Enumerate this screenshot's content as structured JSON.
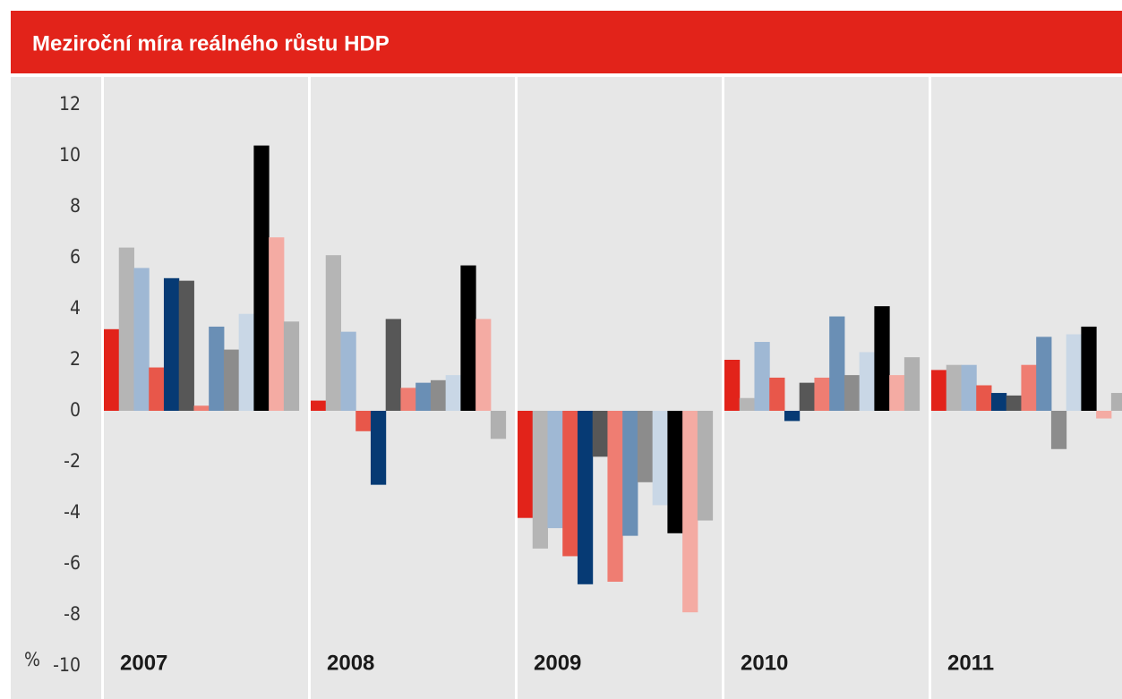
{
  "chart_data": {
    "type": "bar",
    "title": "Meziroční míra reálného růstu HDP",
    "y_label": "%",
    "categories": [
      "2007",
      "2008",
      "2009",
      "2010",
      "2011"
    ],
    "ylim": [
      -10,
      12
    ],
    "yticks": [
      -10,
      -8,
      -6,
      -4,
      -2,
      0,
      2,
      4,
      6,
      8,
      10,
      12
    ],
    "series": [
      {
        "color": "#e2231a",
        "values": [
          3.2,
          0.4,
          -4.2,
          2.0,
          1.6
        ]
      },
      {
        "color": "#b5b5b5",
        "values": [
          6.4,
          6.1,
          -5.4,
          0.5,
          1.8
        ]
      },
      {
        "color": "#9fb8d4",
        "values": [
          5.6,
          3.1,
          -4.6,
          2.7,
          1.8
        ]
      },
      {
        "color": "#e8574a",
        "values": [
          1.7,
          -0.8,
          -5.7,
          1.3,
          1.0
        ]
      },
      {
        "color": "#063a74",
        "values": [
          5.2,
          -2.9,
          -6.8,
          -0.4,
          0.7
        ]
      },
      {
        "color": "#575757",
        "values": [
          5.1,
          3.6,
          -1.8,
          1.1,
          0.6
        ]
      },
      {
        "color": "#ef7d72",
        "values": [
          0.2,
          0.9,
          -6.7,
          1.3,
          1.8
        ]
      },
      {
        "color": "#6a8fb5",
        "values": [
          3.3,
          1.1,
          -4.9,
          3.7,
          2.9
        ]
      },
      {
        "color": "#8c8c8c",
        "values": [
          2.4,
          1.2,
          -2.8,
          1.4,
          -1.5
        ]
      },
      {
        "color": "#c9d7e6",
        "values": [
          3.8,
          1.4,
          -3.7,
          2.3,
          3.0
        ]
      },
      {
        "color": "#000000",
        "values": [
          10.4,
          5.7,
          -4.8,
          4.1,
          3.3
        ]
      },
      {
        "color": "#f4aba3",
        "values": [
          6.8,
          3.6,
          -7.9,
          1.4,
          -0.3
        ]
      },
      {
        "color": "#b0b0b0",
        "values": [
          3.5,
          -1.1,
          -4.3,
          2.1,
          0.7
        ]
      }
    ]
  }
}
